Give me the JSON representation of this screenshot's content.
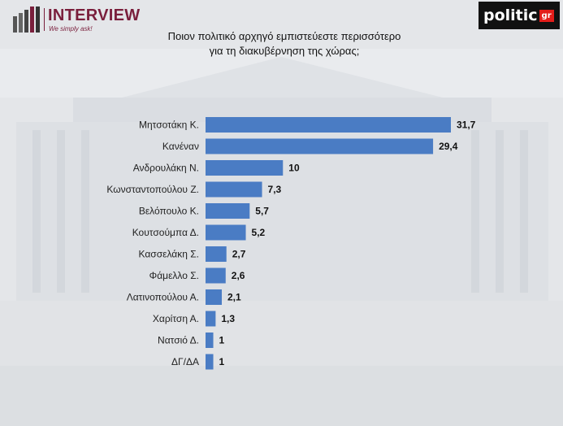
{
  "header": {
    "brand_name": "INTERVIEW",
    "brand_tagline": "We simply ask!",
    "partner_main": "politic",
    "partner_suffix": "gr",
    "colors": {
      "brand": "#7a1f3c",
      "partner_bg": "#111111",
      "partner_accent": "#e31d1a"
    }
  },
  "chart_data": {
    "type": "bar",
    "orientation": "horizontal",
    "title_lines": [
      "Ποιον πολιτικό αρχηγό εμπιστεύεστε περισσότερο",
      "για τη διακυβέρνηση της χώρας;"
    ],
    "categories": [
      "Μητσοτάκη Κ.",
      "Κανέναν",
      "Ανδρουλάκη Ν.",
      "Κωνσταντοπούλου Ζ.",
      "Βελόπουλο Κ.",
      "Κουτσούμπα Δ.",
      "Κασσελάκη Σ.",
      "Φάμελλο Σ.",
      "Λατινοπούλου Α.",
      "Χαρίτση Α.",
      "Νατσιό Δ.",
      "ΔΓ/ΔΑ"
    ],
    "values": [
      31.7,
      29.4,
      10,
      7.3,
      5.7,
      5.2,
      2.7,
      2.6,
      2.1,
      1.3,
      1,
      1
    ],
    "value_labels": [
      "31,7",
      "29,4",
      "10",
      "7,3",
      "5,7",
      "5,2",
      "2,7",
      "2,6",
      "2,1",
      "1,3",
      "1",
      "1"
    ],
    "xlim": [
      0,
      31.7
    ],
    "grid": false,
    "legend": "none",
    "bar_color": "#4a7cc4"
  }
}
